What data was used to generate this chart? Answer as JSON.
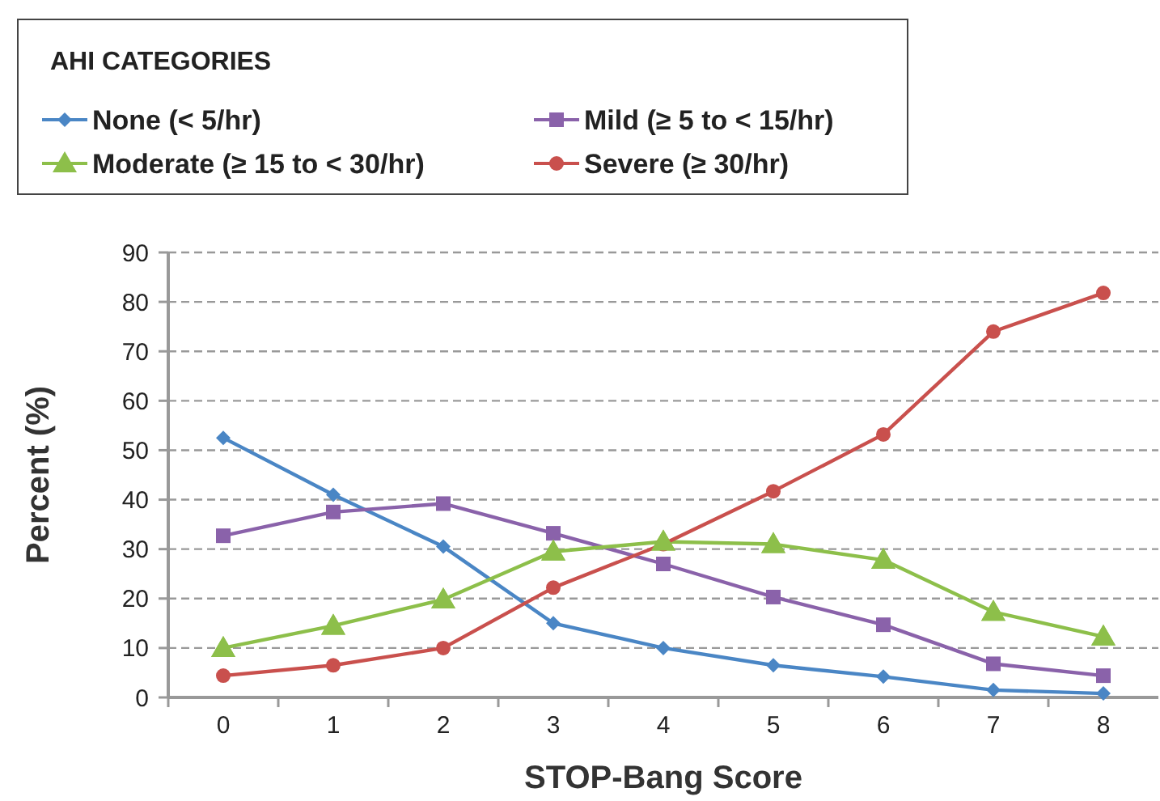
{
  "chart_data": {
    "type": "line",
    "xlabel": "STOP-Bang Score",
    "ylabel": "Percent (%)",
    "legend_title": "AHI CATEGORIES",
    "legend": "top",
    "grid": "y",
    "categories": [
      "0",
      "1",
      "2",
      "3",
      "4",
      "5",
      "6",
      "7",
      "8"
    ],
    "ylim": [
      0,
      90
    ],
    "yticks": [
      0,
      10,
      20,
      30,
      40,
      50,
      60,
      70,
      80,
      90
    ],
    "series": [
      {
        "name": "None (< 5/hr)",
        "color": "#4a86c5",
        "marker": "diamond",
        "values": [
          52.5,
          41,
          30.5,
          15,
          10,
          6.5,
          4.2,
          1.5,
          0.8
        ]
      },
      {
        "name": "Mild (≥ 5 to < 15/hr)",
        "color": "#8a62aa",
        "marker": "square",
        "values": [
          32.7,
          37.5,
          39.2,
          33.2,
          27,
          20.3,
          14.7,
          6.8,
          4.4
        ]
      },
      {
        "name": "Moderate (≥ 15 to < 30/hr)",
        "color": "#8dbf4a",
        "marker": "triangle",
        "values": [
          10,
          14.5,
          19.8,
          29.5,
          31.5,
          31,
          27.8,
          17.3,
          12.3
        ]
      },
      {
        "name": "Severe (≥ 30/hr)",
        "color": "#c9504d",
        "marker": "circle",
        "values": [
          4.4,
          6.5,
          10,
          22.2,
          31,
          41.7,
          53.2,
          74,
          81.8
        ]
      }
    ]
  }
}
